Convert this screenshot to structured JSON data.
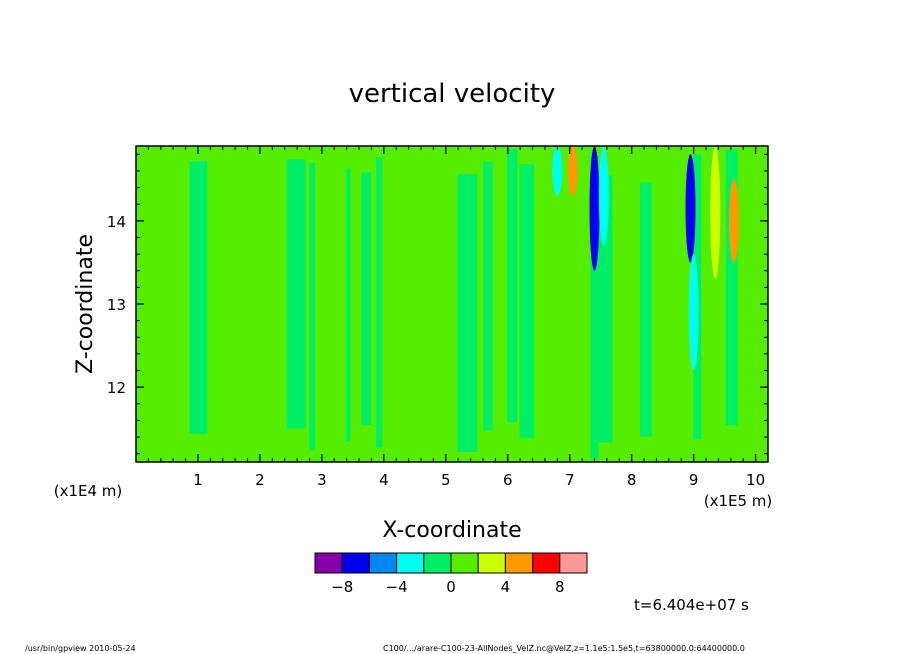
{
  "chart_data": {
    "type": "heatmap",
    "title": "vertical velocity",
    "xlabel": "X-coordinate",
    "ylabel": "Z-coordinate",
    "x_unit_left": "(x1E4 m)",
    "x_unit_right": "(x1E5 m)",
    "xlim": [
      0,
      10.2
    ],
    "ylim": [
      11.1,
      14.9
    ],
    "x_ticks": [
      1,
      2,
      3,
      4,
      5,
      6,
      7,
      8,
      9,
      10
    ],
    "x_tick_labels": [
      "1",
      "2",
      "3",
      "4",
      "5",
      "6",
      "7",
      "8",
      "9",
      "10"
    ],
    "y_ticks": [
      12,
      13,
      14
    ],
    "y_tick_labels": [
      "12",
      "13",
      "14"
    ],
    "grid": false,
    "colorbar": {
      "levels": [
        -10,
        -8,
        -6,
        -4,
        -2,
        0,
        2,
        4,
        6,
        8,
        10
      ],
      "colors": [
        "#8800aa",
        "#0000ee",
        "#0088ee",
        "#00ffee",
        "#00ee66",
        "#55ee00",
        "#ccff00",
        "#ff9900",
        "#ff0000",
        "#ff9999"
      ],
      "tick_values": [
        -8,
        -4,
        0,
        4,
        8
      ],
      "tick_labels": [
        "−8",
        "−4",
        "0",
        "4",
        "8"
      ]
    },
    "features": [
      {
        "x": 7.05,
        "z0": 14.3,
        "z1": 14.9,
        "level": 4
      },
      {
        "x": 7.4,
        "z0": 13.4,
        "z1": 14.9,
        "level": -8
      },
      {
        "x": 7.55,
        "z0": 13.7,
        "z1": 14.9,
        "level": -4
      },
      {
        "x": 6.8,
        "z0": 14.3,
        "z1": 14.9,
        "level": -4
      },
      {
        "x": 8.95,
        "z0": 13.5,
        "z1": 14.8,
        "level": -8
      },
      {
        "x": 9.0,
        "z0": 12.2,
        "z1": 13.6,
        "level": -4
      },
      {
        "x": 9.35,
        "z0": 13.3,
        "z1": 14.9,
        "level": 2
      },
      {
        "x": 9.65,
        "z0": 13.5,
        "z1": 14.5,
        "level": 4
      }
    ]
  },
  "time_label": "t=6.404e+07 s",
  "footer_left": "/usr/bin/gpview   2010-05-24",
  "footer_right": "C100/.../arare-C100-23-AllNodes_VelZ.nc@VelZ,z=1.1e5:1.5e5,t=63800000.0:64400000.0"
}
